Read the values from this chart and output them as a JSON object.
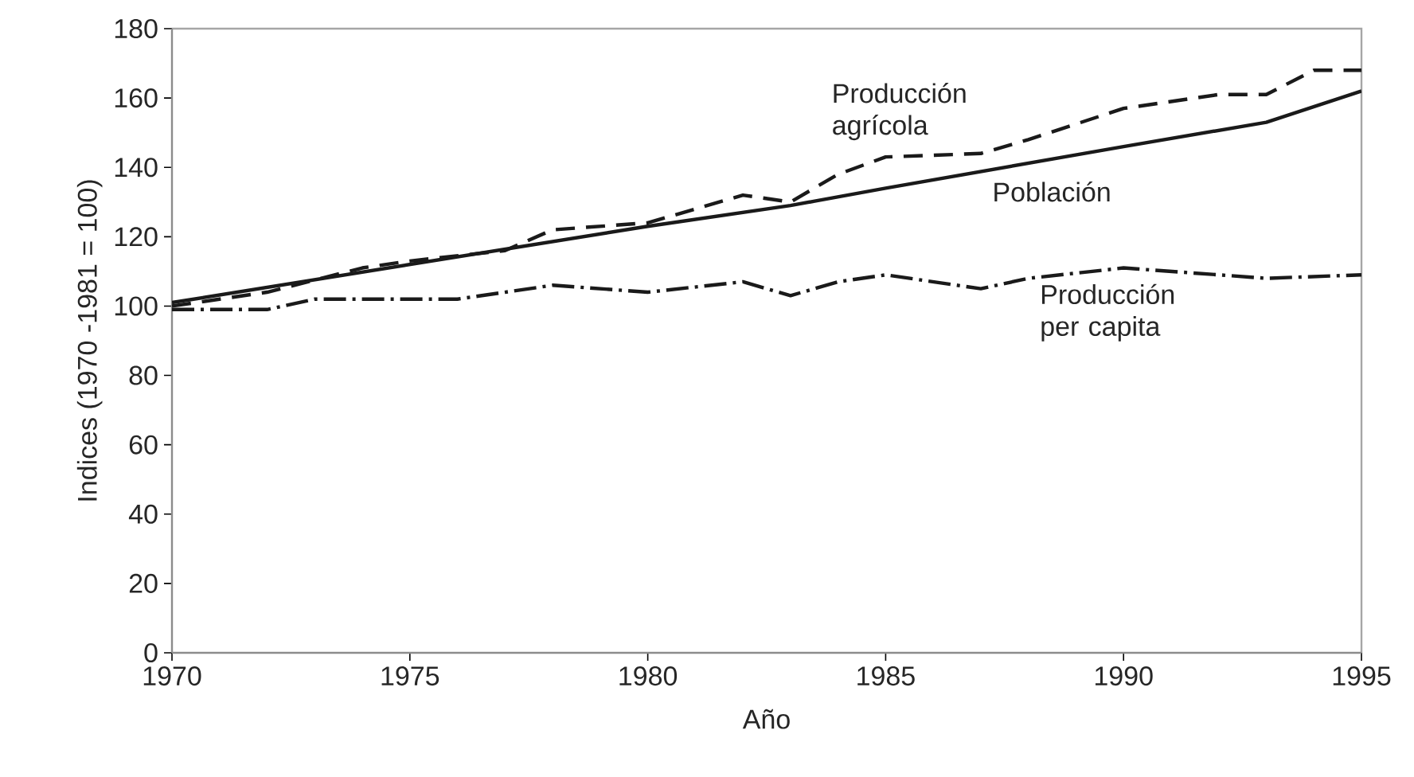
{
  "chart_data": {
    "type": "line",
    "xlabel": "Año",
    "ylabel": "Indices (1970 -1981 = 100)",
    "xlim": [
      1970,
      1995
    ],
    "xticks": [
      1970,
      1975,
      1980,
      1985,
      1990,
      1995
    ],
    "ylim": [
      0,
      180
    ],
    "yticks": [
      0,
      20,
      40,
      60,
      80,
      100,
      120,
      140,
      160,
      180
    ],
    "grid": false,
    "legend": false,
    "series": [
      {
        "name": "Producción agrícola",
        "color": "#1a1a1a",
        "line_style": "dashed",
        "x": [
          1970,
          1972,
          1974,
          1975,
          1977,
          1978,
          1980,
          1982,
          1983,
          1984,
          1985,
          1987,
          1988,
          1990,
          1992,
          1993,
          1994,
          1995
        ],
        "values": [
          100,
          104,
          111,
          113,
          116,
          122,
          124,
          132,
          130,
          138,
          143,
          144,
          148,
          157,
          161,
          161,
          168,
          168
        ]
      },
      {
        "name": "Población",
        "color": "#1a1a1a",
        "line_style": "solid",
        "x": [
          1970,
          1975,
          1980,
          1983,
          1985,
          1990,
          1993,
          1995
        ],
        "values": [
          101,
          112,
          123,
          129,
          134,
          146,
          153,
          162
        ]
      },
      {
        "name": "Producción per capita",
        "color": "#1a1a1a",
        "line_style": "dashdot",
        "x": [
          1970,
          1972,
          1973,
          1976,
          1978,
          1980,
          1982,
          1983,
          1984,
          1985,
          1987,
          1988,
          1990,
          1993,
          1995
        ],
        "values": [
          99,
          99,
          102,
          102,
          106,
          104,
          107,
          103,
          107,
          109,
          105,
          108,
          111,
          108,
          109
        ]
      }
    ]
  }
}
